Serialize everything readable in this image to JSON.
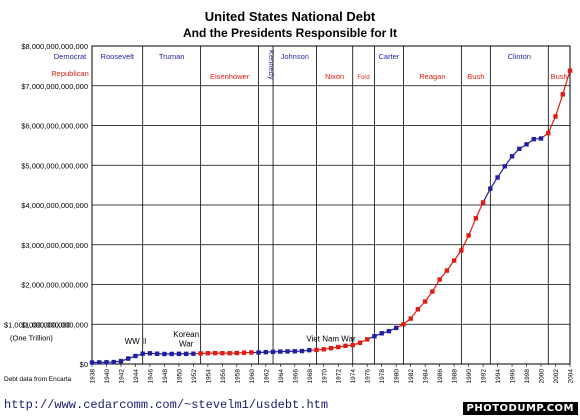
{
  "chart_data": {
    "type": "line",
    "title": "United States National Debt",
    "subtitle": "And the Presidents Responsible for It",
    "ylim": [
      0,
      8000000000000
    ],
    "y_ticks": [
      {
        "value": 0,
        "label": "$0"
      },
      {
        "value": 1000000000000,
        "label": "$1,000,000,000,000"
      },
      {
        "value": 2000000000000,
        "label": "$2,000,000,000,000"
      },
      {
        "value": 3000000000000,
        "label": "$3,000,000,000,000"
      },
      {
        "value": 4000000000000,
        "label": "$4,000,000,000,000"
      },
      {
        "value": 5000000000000,
        "label": "$5,000,000,000,000"
      },
      {
        "value": 6000000000000,
        "label": "$6,000,000,000,000"
      },
      {
        "value": 7000000000000,
        "label": "$7,000,000,000,000"
      },
      {
        "value": 8000000000000,
        "label": "$8,000,000,000,000"
      }
    ],
    "xlim": [
      1938,
      2004
    ],
    "x_ticks": [
      "1938",
      "1940",
      "1942",
      "1944",
      "1946",
      "1948",
      "1950",
      "1952",
      "1954",
      "1956",
      "1958",
      "1960",
      "1962",
      "1964",
      "1966",
      "1968",
      "1970",
      "1972",
      "1974",
      "1976",
      "1978",
      "1980",
      "1982",
      "1984",
      "1986",
      "1988",
      "1990",
      "1992",
      "1994",
      "1996",
      "1998",
      "2000",
      "2002",
      "2004"
    ],
    "legend": [
      {
        "label": "Democrat",
        "color": "#1f1fa0"
      },
      {
        "label": "Republican",
        "color": "#e01b10"
      }
    ],
    "annotations": [
      {
        "text": "$1,000,000,000,000"
      },
      {
        "text": "(One Trillion)"
      },
      {
        "text": "WW II",
        "x": 1944,
        "y": 500000000000
      },
      {
        "text": "Korean",
        "x": 1951,
        "y": 680000000000
      },
      {
        "text": "War",
        "x": 1951,
        "y": 440000000000
      },
      {
        "text": "Viet Nam War",
        "x": 1971,
        "y": 560000000000
      },
      {
        "text": "Debt data from Encarta"
      }
    ],
    "presidents": [
      {
        "name": "Roosevelt",
        "party": "D",
        "start": 1938,
        "end": 1945
      },
      {
        "name": "Truman",
        "party": "D",
        "start": 1945,
        "end": 1953
      },
      {
        "name": "Eisenhower",
        "party": "R",
        "start": 1953,
        "end": 1961
      },
      {
        "name": "Kennedy",
        "party": "D",
        "start": 1961,
        "end": 1963,
        "vertical": true
      },
      {
        "name": "Johnson",
        "party": "D",
        "start": 1963,
        "end": 1969
      },
      {
        "name": "Nixon",
        "party": "R",
        "start": 1969,
        "end": 1974
      },
      {
        "name": "Ford",
        "party": "R",
        "start": 1974,
        "end": 1977
      },
      {
        "name": "Carter",
        "party": "D",
        "start": 1977,
        "end": 1981
      },
      {
        "name": "Reagan",
        "party": "R",
        "start": 1981,
        "end": 1989
      },
      {
        "name": "Bush",
        "party": "R",
        "start": 1989,
        "end": 1993
      },
      {
        "name": "Clinton",
        "party": "D",
        "start": 1993,
        "end": 2001
      },
      {
        "name": "Bush",
        "party": "R",
        "start": 2001,
        "end": 2004
      }
    ],
    "series": [
      {
        "name": "Debt",
        "points": [
          {
            "x": 1938,
            "y": 37000000000,
            "party": "D"
          },
          {
            "x": 1939,
            "y": 40000000000,
            "party": "D"
          },
          {
            "x": 1940,
            "y": 43000000000,
            "party": "D"
          },
          {
            "x": 1941,
            "y": 49000000000,
            "party": "D"
          },
          {
            "x": 1942,
            "y": 72000000000,
            "party": "D"
          },
          {
            "x": 1943,
            "y": 137000000000,
            "party": "D"
          },
          {
            "x": 1944,
            "y": 201000000000,
            "party": "D"
          },
          {
            "x": 1945,
            "y": 259000000000,
            "party": "D"
          },
          {
            "x": 1946,
            "y": 269000000000,
            "party": "D"
          },
          {
            "x": 1947,
            "y": 258000000000,
            "party": "D"
          },
          {
            "x": 1948,
            "y": 252000000000,
            "party": "D"
          },
          {
            "x": 1949,
            "y": 253000000000,
            "party": "D"
          },
          {
            "x": 1950,
            "y": 257000000000,
            "party": "D"
          },
          {
            "x": 1951,
            "y": 255000000000,
            "party": "D"
          },
          {
            "x": 1952,
            "y": 259000000000,
            "party": "D"
          },
          {
            "x": 1953,
            "y": 266000000000,
            "party": "R"
          },
          {
            "x": 1954,
            "y": 271000000000,
            "party": "R"
          },
          {
            "x": 1955,
            "y": 274000000000,
            "party": "R"
          },
          {
            "x": 1956,
            "y": 273000000000,
            "party": "R"
          },
          {
            "x": 1957,
            "y": 271000000000,
            "party": "R"
          },
          {
            "x": 1958,
            "y": 276000000000,
            "party": "R"
          },
          {
            "x": 1959,
            "y": 285000000000,
            "party": "R"
          },
          {
            "x": 1960,
            "y": 291000000000,
            "party": "R"
          },
          {
            "x": 1961,
            "y": 289000000000,
            "party": "D"
          },
          {
            "x": 1962,
            "y": 298000000000,
            "party": "D"
          },
          {
            "x": 1963,
            "y": 306000000000,
            "party": "D"
          },
          {
            "x": 1964,
            "y": 312000000000,
            "party": "D"
          },
          {
            "x": 1965,
            "y": 317000000000,
            "party": "D"
          },
          {
            "x": 1966,
            "y": 320000000000,
            "party": "D"
          },
          {
            "x": 1967,
            "y": 326000000000,
            "party": "D"
          },
          {
            "x": 1968,
            "y": 348000000000,
            "party": "D"
          },
          {
            "x": 1969,
            "y": 354000000000,
            "party": "R"
          },
          {
            "x": 1970,
            "y": 370000000000,
            "party": "R"
          },
          {
            "x": 1971,
            "y": 398000000000,
            "party": "R"
          },
          {
            "x": 1972,
            "y": 427000000000,
            "party": "R"
          },
          {
            "x": 1973,
            "y": 458000000000,
            "party": "R"
          },
          {
            "x": 1974,
            "y": 475000000000,
            "party": "R"
          },
          {
            "x": 1975,
            "y": 533000000000,
            "party": "R"
          },
          {
            "x": 1976,
            "y": 620000000000,
            "party": "R"
          },
          {
            "x": 1977,
            "y": 699000000000,
            "party": "D"
          },
          {
            "x": 1978,
            "y": 772000000000,
            "party": "D"
          },
          {
            "x": 1979,
            "y": 827000000000,
            "party": "D"
          },
          {
            "x": 1980,
            "y": 908000000000,
            "party": "D"
          },
          {
            "x": 1981,
            "y": 998000000000,
            "party": "R"
          },
          {
            "x": 1982,
            "y": 1142000000000,
            "party": "R"
          },
          {
            "x": 1983,
            "y": 1377000000000,
            "party": "R"
          },
          {
            "x": 1984,
            "y": 1572000000000,
            "party": "R"
          },
          {
            "x": 1985,
            "y": 1823000000000,
            "party": "R"
          },
          {
            "x": 1986,
            "y": 2125000000000,
            "party": "R"
          },
          {
            "x": 1987,
            "y": 2350000000000,
            "party": "R"
          },
          {
            "x": 1988,
            "y": 2602000000000,
            "party": "R"
          },
          {
            "x": 1989,
            "y": 2857000000000,
            "party": "R"
          },
          {
            "x": 1990,
            "y": 3233000000000,
            "party": "R"
          },
          {
            "x": 1991,
            "y": 3665000000000,
            "party": "R"
          },
          {
            "x": 1992,
            "y": 4065000000000,
            "party": "R"
          },
          {
            "x": 1993,
            "y": 4411000000000,
            "party": "D"
          },
          {
            "x": 1994,
            "y": 4693000000000,
            "party": "D"
          },
          {
            "x": 1995,
            "y": 4974000000000,
            "party": "D"
          },
          {
            "x": 1996,
            "y": 5225000000000,
            "party": "D"
          },
          {
            "x": 1997,
            "y": 5413000000000,
            "party": "D"
          },
          {
            "x": 1998,
            "y": 5526000000000,
            "party": "D"
          },
          {
            "x": 1999,
            "y": 5656000000000,
            "party": "D"
          },
          {
            "x": 2000,
            "y": 5674000000000,
            "party": "D"
          },
          {
            "x": 2001,
            "y": 5807000000000,
            "party": "R"
          },
          {
            "x": 2002,
            "y": 6228000000000,
            "party": "R"
          },
          {
            "x": 2003,
            "y": 6783000000000,
            "party": "R"
          },
          {
            "x": 2004,
            "y": 7379000000000,
            "party": "R"
          }
        ]
      }
    ],
    "grid": true
  },
  "footer": {
    "url": "http://www.cedarcomm.com/~stevelm1/usdebt.htm",
    "watermark": "PHOTODUMP.COM"
  }
}
